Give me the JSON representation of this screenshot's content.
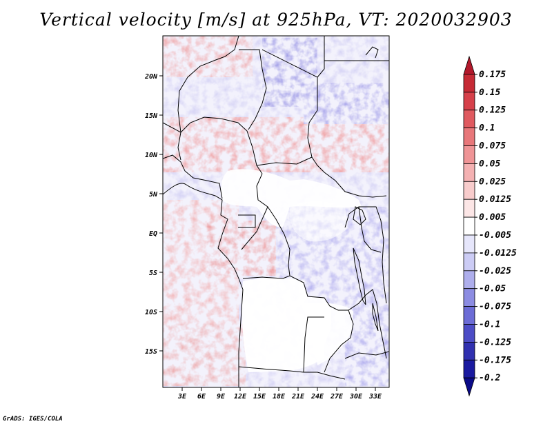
{
  "title": "Vertical velocity [m/s] at 925hPa, VT: 2020032903",
  "credit": "GrADS: IGES/COLA",
  "map": {
    "lat_labels": [
      "20N",
      "15N",
      "10N",
      "5N",
      "EQ",
      "5S",
      "10S",
      "15S"
    ],
    "lon_labels": [
      "3E",
      "6E",
      "9E",
      "12E",
      "15E",
      "18E",
      "21E",
      "24E",
      "27E",
      "30E",
      "33E"
    ]
  },
  "legend": {
    "levels": [
      "0.175",
      "0.15",
      "0.125",
      "0.1",
      "0.075",
      "0.05",
      "0.025",
      "0.0125",
      "0.005",
      "-0.005",
      "-0.0125",
      "-0.025",
      "-0.05",
      "-0.075",
      "-0.1",
      "-0.125",
      "-0.175",
      "-0.2"
    ],
    "colors": [
      "#b2182b",
      "#c62a35",
      "#d6404a",
      "#e05a60",
      "#e8777a",
      "#ef9496",
      "#f4b1b2",
      "#f8cccc",
      "#fce6e6",
      "#ffffff",
      "#e6e6fb",
      "#ccccf5",
      "#aeaeec",
      "#8c8ce2",
      "#6c6cd6",
      "#4c4cc6",
      "#3030b0",
      "#1a1aa0",
      "#0a0a88"
    ]
  }
}
